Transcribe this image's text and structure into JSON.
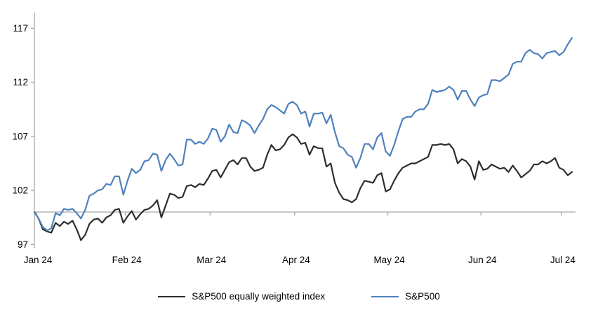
{
  "chart_data": {
    "type": "line",
    "title": "",
    "xlabel": "",
    "ylabel": "",
    "index_base": 100,
    "baseline_value": 100,
    "ylim": [
      97,
      117
    ],
    "y_ticks": [
      97,
      102,
      107,
      112,
      117
    ],
    "x_tick_labels": [
      "Jan 24",
      "Feb 24",
      "Mar 24",
      "Apr 24",
      "May 24",
      "Jun 24",
      "Jul 24"
    ],
    "grid": false,
    "legend_position": "bottom-center",
    "axis_color": "#A6A6A6",
    "text_color": "#000000",
    "x": [
      "12-29",
      "01-02",
      "01-03",
      "01-04",
      "01-05",
      "01-08",
      "01-09",
      "01-10",
      "01-11",
      "01-12",
      "01-16",
      "01-17",
      "01-18",
      "01-19",
      "01-22",
      "01-23",
      "01-24",
      "01-25",
      "01-26",
      "01-29",
      "01-30",
      "01-31",
      "02-01",
      "02-02",
      "02-05",
      "02-06",
      "02-07",
      "02-08",
      "02-09",
      "02-12",
      "02-13",
      "02-14",
      "02-15",
      "02-16",
      "02-20",
      "02-21",
      "02-22",
      "02-23",
      "02-26",
      "02-27",
      "02-28",
      "02-29",
      "03-01",
      "03-04",
      "03-05",
      "03-06",
      "03-07",
      "03-08",
      "03-11",
      "03-12",
      "03-13",
      "03-14",
      "03-15",
      "03-18",
      "03-19",
      "03-20",
      "03-21",
      "03-22",
      "03-25",
      "03-26",
      "03-27",
      "03-28",
      "04-01",
      "04-02",
      "04-03",
      "04-04",
      "04-05",
      "04-08",
      "04-09",
      "04-10",
      "04-11",
      "04-12",
      "04-15",
      "04-16",
      "04-17",
      "04-18",
      "04-19",
      "04-22",
      "04-23",
      "04-24",
      "04-25",
      "04-26",
      "04-29",
      "04-30",
      "05-01",
      "05-02",
      "05-03",
      "05-06",
      "05-07",
      "05-08",
      "05-09",
      "05-10",
      "05-13",
      "05-14",
      "05-15",
      "05-16",
      "05-17",
      "05-20",
      "05-21",
      "05-22",
      "05-23",
      "05-24",
      "05-28",
      "05-29",
      "05-30",
      "05-31",
      "06-03",
      "06-04",
      "06-05",
      "06-06",
      "06-07",
      "06-10",
      "06-11",
      "06-12",
      "06-13",
      "06-14",
      "06-17",
      "06-18",
      "06-20",
      "06-21",
      "06-24",
      "06-25",
      "06-26",
      "06-27",
      "06-28",
      "07-01",
      "07-02",
      "07-03"
    ],
    "series": [
      {
        "name": "S&P500 equally weighted index",
        "color": "#2E2E2E",
        "values": [
          100.0,
          99.4,
          98.4,
          98.2,
          98.1,
          99.0,
          98.7,
          99.1,
          98.9,
          99.2,
          98.4,
          97.4,
          97.9,
          98.9,
          99.3,
          99.4,
          99.0,
          99.5,
          99.7,
          100.2,
          100.3,
          99.0,
          99.6,
          100.1,
          99.3,
          99.8,
          100.2,
          100.3,
          100.6,
          101.1,
          99.5,
          100.6,
          101.7,
          101.6,
          101.3,
          101.4,
          102.4,
          102.5,
          102.3,
          102.6,
          102.5,
          103.1,
          103.8,
          103.9,
          103.2,
          103.9,
          104.6,
          104.8,
          104.4,
          105.0,
          105.0,
          104.2,
          103.8,
          103.9,
          104.1,
          105.3,
          106.2,
          105.7,
          105.8,
          106.2,
          106.9,
          107.2,
          106.9,
          106.3,
          106.4,
          105.3,
          106.1,
          105.9,
          105.9,
          104.2,
          104.5,
          102.7,
          101.8,
          101.2,
          101.1,
          100.9,
          101.2,
          102.2,
          102.9,
          102.8,
          102.7,
          103.4,
          103.6,
          101.9,
          102.1,
          102.9,
          103.6,
          104.1,
          104.3,
          104.5,
          104.5,
          104.7,
          104.9,
          105.1,
          106.2,
          106.2,
          106.3,
          106.2,
          106.3,
          105.8,
          104.5,
          104.9,
          104.7,
          104.2,
          103.0,
          104.7,
          103.9,
          104.0,
          104.4,
          104.2,
          104.0,
          104.1,
          103.7,
          104.3,
          103.8,
          103.2,
          103.5,
          103.8,
          104.4,
          104.4,
          104.7,
          104.5,
          104.7,
          105.0,
          104.1,
          103.9,
          103.4,
          103.7
        ]
      },
      {
        "name": "S&P500",
        "color": "#4F81BD",
        "values": [
          100.0,
          99.4,
          98.6,
          98.3,
          98.5,
          99.9,
          99.7,
          100.3,
          100.2,
          100.3,
          99.9,
          99.4,
          100.2,
          101.5,
          101.7,
          102.0,
          102.1,
          102.6,
          102.5,
          103.3,
          103.3,
          101.6,
          102.9,
          104.0,
          103.6,
          103.9,
          104.7,
          104.8,
          105.4,
          105.3,
          103.8,
          104.8,
          105.4,
          104.9,
          104.3,
          104.4,
          106.7,
          106.7,
          106.3,
          106.5,
          106.3,
          106.8,
          107.7,
          107.6,
          106.5,
          107.0,
          108.1,
          107.4,
          107.3,
          108.5,
          108.3,
          108.0,
          107.3,
          108.0,
          108.6,
          109.5,
          109.9,
          109.7,
          109.4,
          109.1,
          110.0,
          110.2,
          109.9,
          109.1,
          109.3,
          107.9,
          109.1,
          109.1,
          109.2,
          108.2,
          109.0,
          107.4,
          106.1,
          105.9,
          105.3,
          105.1,
          104.1,
          105.0,
          106.3,
          106.3,
          105.8,
          106.9,
          107.3,
          105.6,
          105.2,
          106.2,
          107.5,
          108.6,
          108.8,
          108.8,
          109.3,
          109.5,
          109.5,
          110.0,
          111.3,
          111.1,
          111.2,
          111.3,
          111.6,
          111.3,
          110.4,
          111.2,
          111.2,
          110.4,
          109.8,
          110.6,
          110.8,
          110.9,
          112.2,
          112.2,
          112.1,
          112.4,
          112.7,
          113.7,
          113.9,
          113.9,
          114.7,
          115.0,
          114.7,
          114.6,
          114.2,
          114.7,
          114.8,
          114.9,
          114.5,
          114.8,
          115.5,
          116.1
        ]
      }
    ]
  },
  "legend": {
    "items": [
      {
        "label": "S&P500 equally weighted index",
        "color": "#2E2E2E"
      },
      {
        "label": "S&P500",
        "color": "#4F81BD"
      }
    ]
  }
}
